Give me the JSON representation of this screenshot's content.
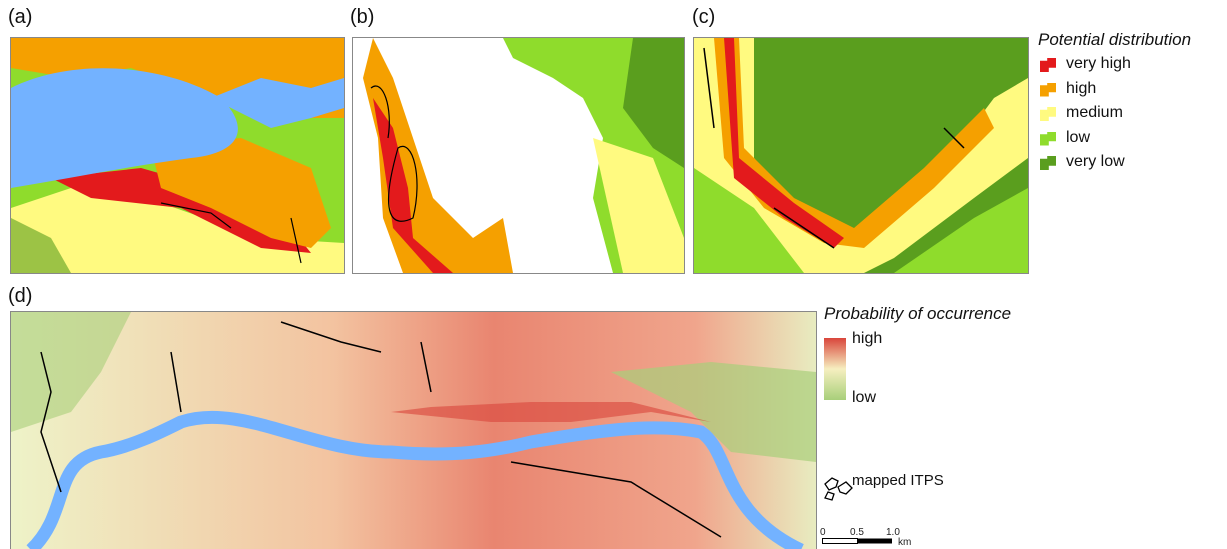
{
  "panels": [
    {
      "label": "(a)"
    },
    {
      "label": "(b)"
    },
    {
      "label": "(c)"
    },
    {
      "label": "(d)"
    }
  ],
  "legend_distribution": {
    "title": "Potential distribution",
    "items": [
      {
        "label": "very high",
        "color": "#e31a1c"
      },
      {
        "label": "high",
        "color": "#f5a000"
      },
      {
        "label": "medium",
        "color": "#fffa80"
      },
      {
        "label": "low",
        "color": "#8fdc2c"
      },
      {
        "label": "very low",
        "color": "#5a9e1e"
      }
    ]
  },
  "legend_probability": {
    "title": "Probability of occurrence",
    "high": "high",
    "low": "low"
  },
  "legend_itps": {
    "label": "mapped ITPS"
  },
  "scale_bar": {
    "ticks": [
      "0",
      "0.5",
      "1.0"
    ],
    "unit": "km"
  }
}
